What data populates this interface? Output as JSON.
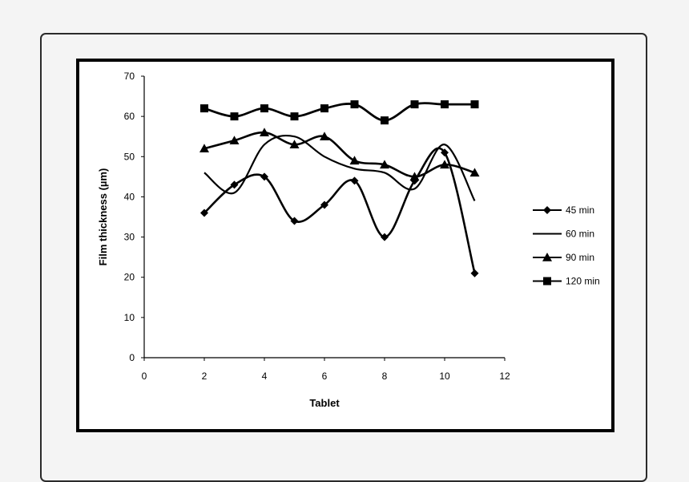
{
  "chart_data": {
    "type": "line",
    "title": "",
    "xlabel": "Tablet",
    "ylabel": "Film thickness (µm)",
    "xlim": [
      0,
      12
    ],
    "ylim": [
      0,
      70
    ],
    "xticks": [
      0,
      2,
      4,
      6,
      8,
      10,
      12
    ],
    "yticks": [
      0,
      10,
      20,
      30,
      40,
      50,
      60,
      70
    ],
    "grid": false,
    "legend_position": "right",
    "x": [
      2,
      3,
      4,
      5,
      6,
      7,
      8,
      9,
      10,
      11
    ],
    "series": [
      {
        "name": "45 min",
        "marker": "diamond",
        "values": [
          36,
          43,
          45,
          34,
          38,
          44,
          30,
          44,
          51,
          21
        ]
      },
      {
        "name": "60 min",
        "marker": "none",
        "values": [
          46,
          41,
          53,
          55,
          50,
          47,
          46,
          42,
          53,
          39
        ]
      },
      {
        "name": "90 min",
        "marker": "triangle",
        "values": [
          52,
          54,
          56,
          53,
          55,
          49,
          48,
          45,
          48,
          46
        ]
      },
      {
        "name": "120 min",
        "marker": "square",
        "values": [
          62,
          60,
          62,
          60,
          62,
          63,
          59,
          63,
          63,
          63
        ]
      }
    ]
  }
}
